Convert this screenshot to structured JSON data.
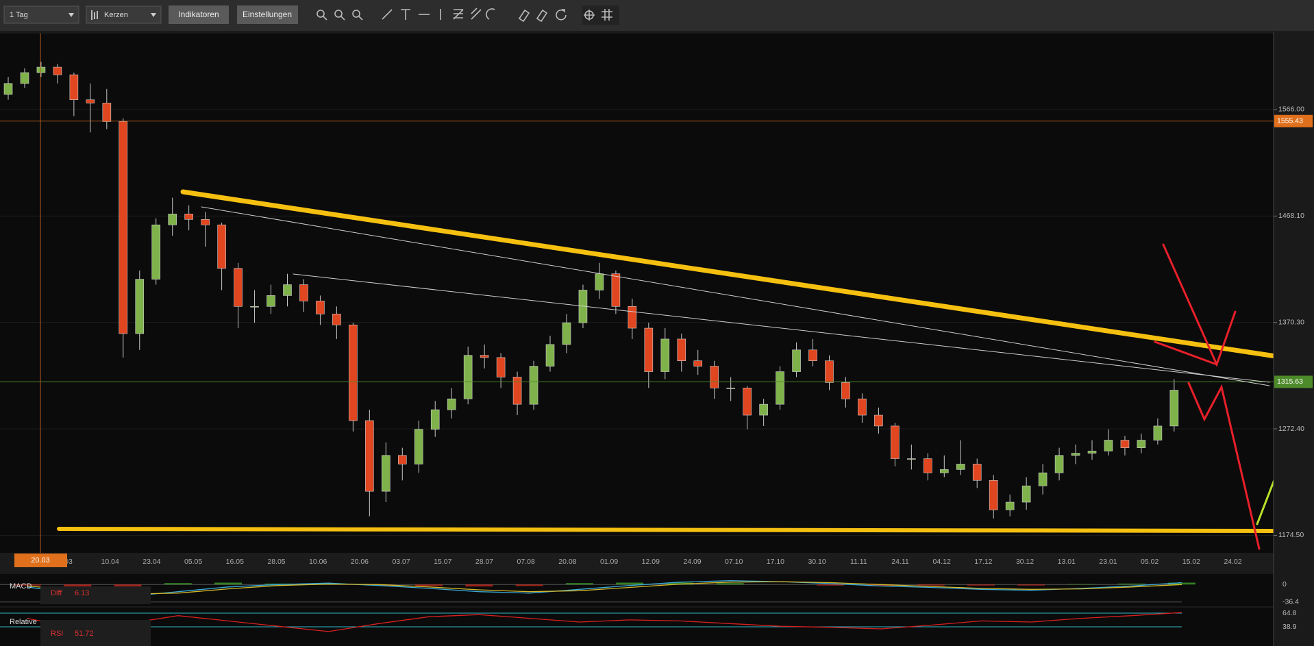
{
  "toolbar": {
    "interval": "1 Tag",
    "style": "Kerzen",
    "buttons": [
      "Indikatoren",
      "Einstellungen"
    ]
  },
  "chart_data": [
    {
      "type": "candlestick",
      "open": [
        1580,
        1590,
        1600,
        1605,
        1598,
        1575,
        1572,
        1555,
        1360,
        1410,
        1460,
        1470,
        1465,
        1460,
        1420,
        1385,
        1385,
        1395,
        1405,
        1390,
        1378,
        1368,
        1280,
        1215,
        1248,
        1240,
        1272,
        1290,
        1300,
        1340,
        1338,
        1320,
        1295,
        1330,
        1350,
        1370,
        1400,
        1415,
        1385,
        1365,
        1325,
        1355,
        1335,
        1330,
        1310,
        1310,
        1285,
        1295,
        1325,
        1345,
        1335,
        1315,
        1300,
        1285,
        1275,
        1245,
        1245,
        1232,
        1235,
        1240,
        1225,
        1198,
        1205,
        1220,
        1232,
        1248,
        1250,
        1252,
        1262,
        1255,
        1262,
        1275
      ],
      "high": [
        1596,
        1604,
        1610,
        1608,
        1600,
        1590,
        1585,
        1558,
        1418,
        1466,
        1485,
        1478,
        1472,
        1462,
        1425,
        1400,
        1405,
        1415,
        1410,
        1395,
        1385,
        1370,
        1290,
        1260,
        1255,
        1280,
        1298,
        1310,
        1348,
        1350,
        1342,
        1325,
        1335,
        1358,
        1378,
        1405,
        1425,
        1418,
        1392,
        1370,
        1365,
        1360,
        1345,
        1335,
        1320,
        1312,
        1300,
        1330,
        1352,
        1355,
        1340,
        1320,
        1305,
        1292,
        1278,
        1258,
        1250,
        1248,
        1262,
        1245,
        1230,
        1212,
        1228,
        1240,
        1255,
        1258,
        1262,
        1272,
        1266,
        1268,
        1282,
        1318
      ],
      "low": [
        1575,
        1586,
        1596,
        1590,
        1560,
        1545,
        1548,
        1338,
        1345,
        1405,
        1450,
        1455,
        1440,
        1400,
        1365,
        1370,
        1378,
        1385,
        1380,
        1368,
        1355,
        1270,
        1192,
        1205,
        1225,
        1232,
        1265,
        1282,
        1295,
        1328,
        1310,
        1285,
        1290,
        1325,
        1342,
        1365,
        1392,
        1378,
        1355,
        1310,
        1318,
        1325,
        1322,
        1300,
        1298,
        1272,
        1275,
        1290,
        1320,
        1330,
        1308,
        1292,
        1278,
        1268,
        1238,
        1235,
        1225,
        1228,
        1230,
        1218,
        1190,
        1192,
        1198,
        1212,
        1225,
        1240,
        1244,
        1248,
        1248,
        1250,
        1258,
        1270
      ],
      "close": [
        1590,
        1600,
        1605,
        1598,
        1575,
        1572,
        1555,
        1360,
        1410,
        1460,
        1470,
        1465,
        1460,
        1420,
        1385,
        1385,
        1395,
        1405,
        1390,
        1378,
        1368,
        1280,
        1215,
        1248,
        1240,
        1272,
        1290,
        1300,
        1340,
        1338,
        1320,
        1295,
        1330,
        1350,
        1370,
        1400,
        1415,
        1385,
        1365,
        1325,
        1355,
        1335,
        1330,
        1310,
        1310,
        1285,
        1295,
        1325,
        1345,
        1335,
        1315,
        1300,
        1285,
        1275,
        1245,
        1245,
        1232,
        1235,
        1240,
        1225,
        1198,
        1205,
        1220,
        1232,
        1248,
        1250,
        1252,
        1262,
        1255,
        1262,
        1275,
        1308
      ],
      "up_color": "#7fb24a",
      "down_color": "#e0461f",
      "ylim": [
        1158.4,
        1635.9
      ],
      "yticks": [
        {
          "value": 1174.5,
          "label": "1174.50"
        },
        {
          "value": 1272.4,
          "label": "1272.40"
        },
        {
          "value": 1370.3,
          "label": "1370.30"
        },
        {
          "value": 1468.1,
          "label": "1468.10"
        },
        {
          "value": 1566,
          "label": "1566.00"
        }
      ],
      "grid": true,
      "date_labels": [
        "03",
        "10.04",
        "23.04",
        "05.05",
        "16.05",
        "28.05",
        "10.06",
        "20.06",
        "03.07",
        "15.07",
        "28.07",
        "07.08",
        "20.08",
        "01.09",
        "12.09",
        "24.09",
        "07.10",
        "17.10",
        "30.10",
        "11.11",
        "24.11",
        "04.12",
        "17.12",
        "30.12",
        "13.01",
        "23.01",
        "05.02",
        "15.02",
        "24.02"
      ],
      "crosshair_date": "20.03",
      "crosshair_price": 1555.43,
      "crosshair_color": "#e0701c",
      "last_price": 1315.63,
      "last_price_color": "#4d8a2a"
    },
    {
      "type": "macd",
      "name": "MACD",
      "diff_name": "Diff",
      "diff": 6.13,
      "series": [
        {
          "color": "#39a9d8",
          "values": [
            -5,
            -20,
            -25,
            -15,
            -5,
            0,
            3,
            -2,
            -8,
            -15,
            -18,
            -10,
            -2,
            5,
            8,
            6,
            2,
            -3,
            -6,
            -10,
            -12,
            -8,
            -3,
            4
          ]
        },
        {
          "color": "#d4b82a",
          "values": [
            -3,
            -12,
            -20,
            -18,
            -9,
            -2,
            1,
            0,
            -5,
            -11,
            -15,
            -13,
            -6,
            1,
            5,
            6,
            4,
            0,
            -4,
            -8,
            -10,
            -9,
            -5,
            0
          ]
        }
      ],
      "histogram": {
        "values": [
          -2,
          -8,
          -5,
          3,
          4,
          2,
          2,
          -2,
          -3,
          -4,
          -3,
          3,
          4,
          4,
          3,
          0,
          -2,
          -3,
          -2,
          -2,
          -2,
          1,
          2,
          4
        ],
        "up_color": "#3c9a2a",
        "down_color": "#c8281c"
      },
      "ylim": [
        -44,
        19
      ],
      "yticks": [
        0,
        -36.4
      ],
      "grid_color": "#555555"
    },
    {
      "type": "line",
      "name": "Relative",
      "indicator": "RSI",
      "reading": 51.72,
      "series": [
        {
          "color": "#d82020",
          "values": [
            55,
            35,
            45,
            60,
            50,
            40,
            30,
            45,
            58,
            62,
            55,
            48,
            52,
            50,
            45,
            40,
            38,
            35,
            42,
            50,
            48,
            55,
            60,
            66
          ]
        }
      ],
      "ylim": [
        2.6,
        75.2
      ],
      "yticks": [
        64.8,
        38.9
      ],
      "grid_color": "#2fb8c8"
    }
  ]
}
